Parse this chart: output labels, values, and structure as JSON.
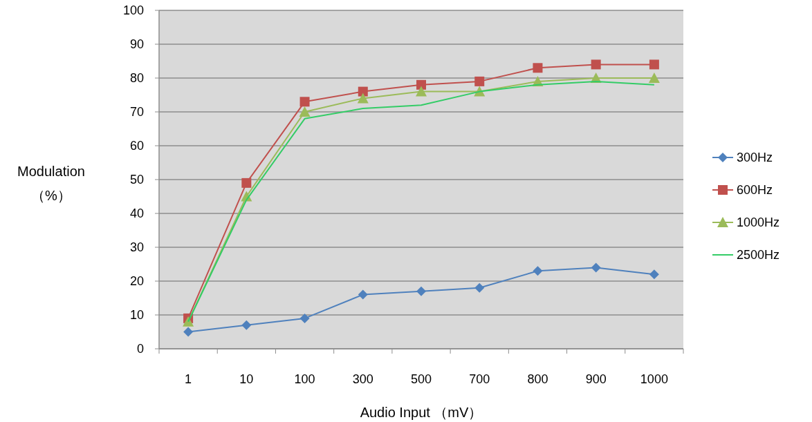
{
  "chart_data": {
    "type": "line",
    "xlabel": "Audio Input （mV）",
    "ylabel": "Modulation\n（%）",
    "categories": [
      "1",
      "10",
      "100",
      "300",
      "500",
      "700",
      "800",
      "900",
      "1000"
    ],
    "ylim": [
      0,
      100
    ],
    "yticks": [
      0,
      10,
      20,
      30,
      40,
      50,
      60,
      70,
      80,
      90,
      100
    ],
    "grid": "y",
    "legend": "right",
    "line_style": "solid",
    "series": [
      {
        "name": "300Hz",
        "color": "#4f81bd",
        "marker": "diamond",
        "values": [
          5,
          7,
          9,
          16,
          17,
          18,
          23,
          24,
          22
        ]
      },
      {
        "name": "600Hz",
        "color": "#c0504d",
        "marker": "square",
        "values": [
          9,
          49,
          73,
          76,
          78,
          79,
          83,
          84,
          84
        ]
      },
      {
        "name": "1000Hz",
        "color": "#9bbb59",
        "marker": "triangle",
        "values": [
          8,
          45,
          70,
          74,
          76,
          76,
          79,
          80,
          80
        ]
      },
      {
        "name": "2500Hz",
        "color": "#33cc66",
        "marker": "none",
        "values": [
          8,
          44,
          68,
          71,
          72,
          76,
          78,
          79,
          78
        ]
      }
    ]
  }
}
